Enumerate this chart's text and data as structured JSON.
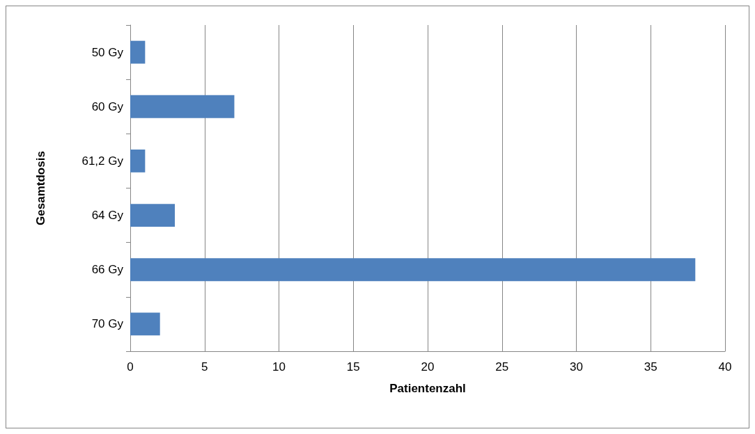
{
  "chart_data": {
    "type": "bar",
    "orientation": "horizontal",
    "xlabel": "Patientenzahl",
    "ylabel": "Gesamtdosis",
    "categories": [
      "50 Gy",
      "60 Gy",
      "61,2 Gy",
      "64 Gy",
      "66 Gy",
      "70 Gy"
    ],
    "values": [
      1,
      7,
      1,
      3,
      38,
      2
    ],
    "color": "#4f81bd",
    "xlim": [
      0,
      40
    ],
    "xticks": [
      0,
      5,
      10,
      15,
      20,
      25,
      30,
      35,
      40
    ],
    "grid": "x"
  }
}
